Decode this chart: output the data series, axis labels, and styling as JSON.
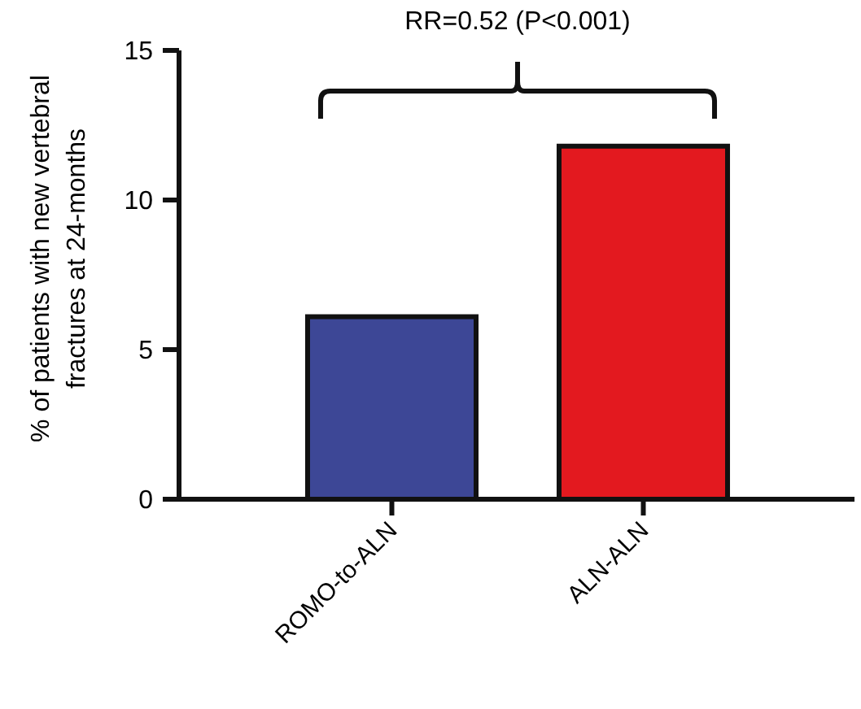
{
  "chart_data": {
    "type": "bar",
    "categories": [
      "ROMO-to-ALN",
      "ALN-ALN"
    ],
    "values": [
      6.1,
      11.8
    ],
    "colors": [
      "#3d4796",
      "#e3191f"
    ],
    "ylabel": "% of patients with new vertebral\nfractures at 24-months",
    "ylim": [
      0,
      15
    ],
    "yticks": [
      0,
      5,
      10,
      15
    ],
    "grid": false,
    "annotations": [
      "RR=0.52 (P<0.001)"
    ]
  }
}
